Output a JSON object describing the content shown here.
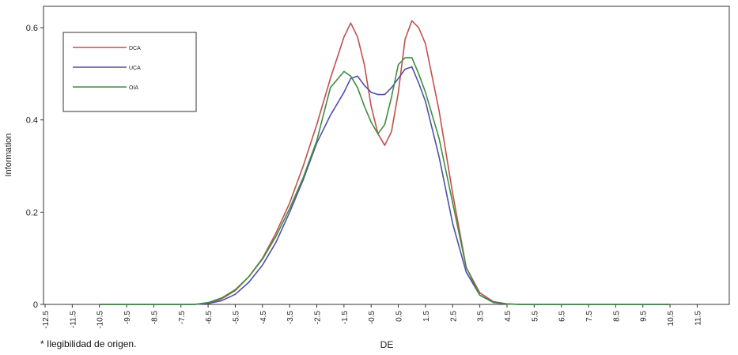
{
  "chart_data": {
    "type": "line",
    "title": "",
    "xlabel": "DE",
    "ylabel": "Information",
    "xlim": [
      -12.5,
      11.5
    ],
    "ylim": [
      0,
      0.65
    ],
    "grid": false,
    "legend_position": "top-left",
    "x_ticks": [
      -12.5,
      -11.5,
      -10.5,
      -9.5,
      -8.5,
      -7.5,
      -6.5,
      -5.5,
      -4.5,
      -3.5,
      -2.5,
      -1.5,
      -0.5,
      0.5,
      1.5,
      2.5,
      3.5,
      4.5,
      5.5,
      6.5,
      7.5,
      8.5,
      9.5,
      10.5,
      11.5
    ],
    "x_tick_labels": [
      "-12.5",
      "-11.5",
      "-10.5",
      "-9.5",
      "-8.5",
      "-7.5",
      "-6.5",
      "-5.5",
      "-4.5",
      "-3.5",
      "-2.5",
      "-1.5",
      "-0.5",
      "0.5",
      "1.5",
      "2.5",
      "3.5",
      "4.5",
      "5.5",
      "6.5",
      "7.5",
      "8.5",
      "9.5",
      "10.5",
      "11.5"
    ],
    "y_ticks": [
      0,
      0.2,
      0.4,
      0.6
    ],
    "y_tick_labels": [
      "0",
      "0.2",
      "0.4",
      "0.6"
    ],
    "x": [
      -10.5,
      -7.0,
      -6.5,
      -6.0,
      -5.5,
      -5.0,
      -4.5,
      -4.0,
      -3.5,
      -3.0,
      -2.5,
      -2.0,
      -1.5,
      -1.25,
      -1.0,
      -0.75,
      -0.5,
      -0.25,
      0.0,
      0.25,
      0.5,
      0.75,
      1.0,
      1.25,
      1.5,
      2.0,
      2.5,
      3.0,
      3.5,
      4.0,
      4.5,
      5.0,
      10.5
    ],
    "series": [
      {
        "name": "DCA",
        "color": "#c0504d",
        "values": [
          0,
          0,
          0.003,
          0.012,
          0.03,
          0.06,
          0.1,
          0.155,
          0.22,
          0.3,
          0.39,
          0.49,
          0.58,
          0.61,
          0.58,
          0.52,
          0.43,
          0.37,
          0.345,
          0.375,
          0.46,
          0.575,
          0.615,
          0.6,
          0.565,
          0.42,
          0.24,
          0.08,
          0.025,
          0.006,
          0.001,
          0,
          0
        ]
      },
      {
        "name": "UCA",
        "color": "#4f4fa8",
        "values": [
          0,
          0,
          0.002,
          0.008,
          0.022,
          0.048,
          0.085,
          0.135,
          0.2,
          0.27,
          0.35,
          0.41,
          0.46,
          0.49,
          0.495,
          0.475,
          0.46,
          0.455,
          0.455,
          0.47,
          0.49,
          0.51,
          0.515,
          0.48,
          0.44,
          0.32,
          0.175,
          0.07,
          0.02,
          0.005,
          0.001,
          0,
          0
        ]
      },
      {
        "name": "OIA",
        "color": "#3f8f3f",
        "values": [
          0,
          0,
          0.004,
          0.014,
          0.032,
          0.06,
          0.098,
          0.148,
          0.208,
          0.275,
          0.355,
          0.47,
          0.505,
          0.495,
          0.47,
          0.43,
          0.395,
          0.37,
          0.39,
          0.45,
          0.52,
          0.535,
          0.535,
          0.5,
          0.46,
          0.36,
          0.22,
          0.08,
          0.02,
          0.004,
          0.001,
          0,
          0
        ]
      }
    ]
  },
  "footnote": "* Ilegibilidad de origen."
}
